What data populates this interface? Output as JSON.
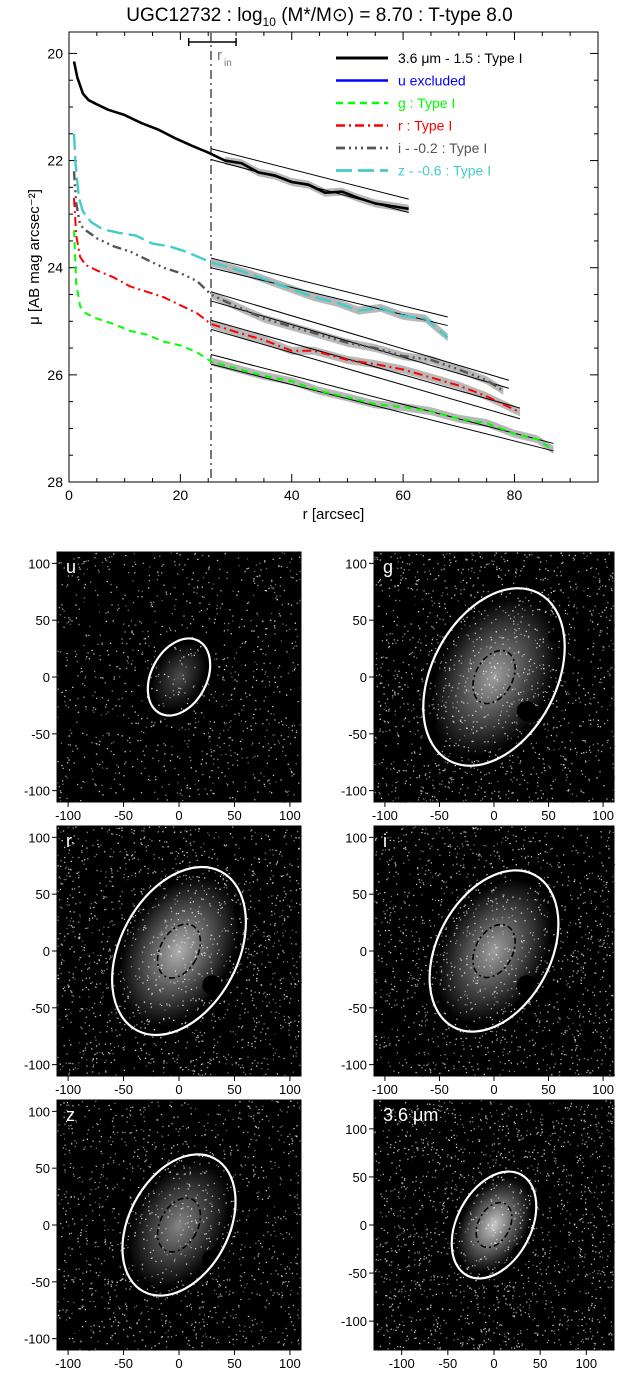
{
  "figure": {
    "title": {
      "galaxy": "UGC12732",
      "mass_prefix": "log",
      "mass_base": "10",
      "mass_expr": "(M*/M",
      "mass_sun": "⊙",
      "mass_value": ") = 8.70 : T-type 8.0"
    }
  },
  "chart_data": [
    {
      "type": "line",
      "name": "surface-brightness-profile",
      "xlabel": "r [arcsec]",
      "ylabel": "μ [AB mag arcsec⁻²]",
      "xlim": [
        0,
        95
      ],
      "ylim": [
        28,
        19.6
      ],
      "y_inverted": true,
      "xticks": [
        0,
        20,
        40,
        60,
        80
      ],
      "yticks": [
        20,
        22,
        24,
        26,
        28
      ],
      "grid": false,
      "legend_position": "top-right",
      "r_in": {
        "value": 25.5,
        "label": "r",
        "label_sub": "in",
        "err": [
          21.5,
          30
        ]
      },
      "series": [
        {
          "name": "3.6 μm - 1.5 : Type I",
          "color": "#000000",
          "dash": "",
          "width": 2.6,
          "x": [
            0.9,
            1.5,
            2.5,
            3.5,
            5,
            7,
            10,
            13,
            16,
            19,
            22,
            25,
            28,
            31,
            34,
            37,
            40,
            43,
            46,
            49,
            52,
            55,
            58,
            61
          ],
          "y": [
            20.15,
            20.45,
            20.75,
            20.87,
            20.95,
            21.05,
            21.15,
            21.3,
            21.42,
            21.58,
            21.72,
            21.85,
            22.0,
            22.05,
            22.22,
            22.28,
            22.4,
            22.45,
            22.6,
            22.58,
            22.7,
            22.8,
            22.85,
            22.9
          ],
          "fit": {
            "x": [
              25.5,
              61
            ],
            "y_upper": [
              21.78,
              22.72
            ],
            "y_lower": [
              21.98,
              22.97
            ]
          }
        },
        {
          "name": "u excluded",
          "color": "#0000ff",
          "dash": "",
          "width": 2,
          "x": [],
          "y": []
        },
        {
          "name": "g : Type I",
          "color": "#00ff00",
          "dash": "7,5",
          "width": 2,
          "x": [
            0.9,
            1.3,
            2,
            3,
            5,
            8,
            11,
            14,
            17,
            20,
            23,
            25.5,
            30,
            35,
            40,
            45,
            50,
            55,
            60,
            65,
            70,
            75,
            80,
            84,
            87
          ],
          "y": [
            23.3,
            24.3,
            24.72,
            24.85,
            24.95,
            25.05,
            25.18,
            25.25,
            25.38,
            25.45,
            25.58,
            25.75,
            25.88,
            26.02,
            26.12,
            26.3,
            26.42,
            26.55,
            26.6,
            26.68,
            26.82,
            26.9,
            27.1,
            27.2,
            27.4
          ],
          "fit": {
            "x": [
              25.5,
              87
            ],
            "y_upper": [
              25.62,
              27.28
            ],
            "y_lower": [
              25.8,
              27.42
            ]
          }
        },
        {
          "name": "r : Type I",
          "color": "#ff0000",
          "dash": "9,4,2,4",
          "width": 2,
          "x": [
            0.9,
            1.3,
            2,
            3,
            5,
            8,
            11,
            14,
            17,
            20,
            23,
            25.5,
            30,
            35,
            40,
            44,
            50,
            55,
            60,
            65,
            70,
            75,
            78,
            81
          ],
          "y": [
            22.7,
            23.4,
            23.8,
            23.95,
            24.05,
            24.18,
            24.35,
            24.45,
            24.55,
            24.7,
            24.85,
            25.05,
            25.2,
            25.35,
            25.55,
            25.55,
            25.72,
            25.8,
            25.9,
            26.05,
            26.2,
            26.4,
            26.55,
            26.7
          ],
          "fit": {
            "x": [
              25.5,
              81
            ],
            "y_upper": [
              24.98,
              26.62
            ],
            "y_lower": [
              25.15,
              26.82
            ]
          }
        },
        {
          "name": "i - -0.2 : Type I",
          "color": "#555555",
          "dash": "9,4,2,4,2,4,2,4",
          "width": 2.4,
          "x": [
            0.9,
            1.3,
            2,
            3,
            5,
            8,
            11,
            14,
            17,
            20,
            23,
            25.5,
            30,
            35,
            40,
            45,
            50,
            55,
            60,
            65,
            70,
            75,
            78
          ],
          "y": [
            22.2,
            22.8,
            23.2,
            23.3,
            23.45,
            23.6,
            23.7,
            23.85,
            24.0,
            24.1,
            24.25,
            24.5,
            24.72,
            24.95,
            25.1,
            25.25,
            25.4,
            25.5,
            25.65,
            25.72,
            25.9,
            26.1,
            26.3
          ],
          "fit": {
            "x": [
              25.5,
              79
            ],
            "y_upper": [
              24.45,
              26.1
            ],
            "y_lower": [
              24.62,
              26.25
            ]
          }
        },
        {
          "name": "z - -0.6 : Type I",
          "color": "#44cccc",
          "dash": "16,6",
          "width": 2.4,
          "x": [
            0.9,
            1.2,
            1.8,
            2.5,
            4,
            6,
            9,
            12,
            15,
            18,
            21,
            25.5,
            28,
            32,
            36,
            40,
            44,
            48,
            52,
            56,
            60,
            64,
            68
          ],
          "y": [
            21.5,
            22.1,
            22.7,
            22.95,
            23.15,
            23.28,
            23.35,
            23.4,
            23.55,
            23.6,
            23.7,
            23.9,
            23.97,
            24.1,
            24.25,
            24.4,
            24.55,
            24.65,
            24.8,
            24.75,
            24.9,
            24.95,
            25.3
          ],
          "fit": {
            "x": [
              25.5,
              68
            ],
            "y_upper": [
              23.82,
              24.92
            ],
            "y_lower": [
              24.0,
              25.08
            ]
          }
        }
      ]
    },
    {
      "type": "image",
      "panels": [
        {
          "label": "u",
          "xlim": [
            -110,
            110
          ],
          "ylim": [
            -110,
            110
          ],
          "xticks": [
            -100,
            -50,
            0,
            50,
            100
          ],
          "yticks": [
            100,
            50,
            0,
            -50,
            -100
          ],
          "outer_ellipse": {
            "a": 37,
            "b": 25,
            "tilt_deg": 62
          },
          "inner_ellipse": null,
          "brightness": 0.15
        },
        {
          "label": "g",
          "xlim": [
            -110,
            110
          ],
          "ylim": [
            -110,
            110
          ],
          "xticks": [
            -100,
            -50,
            0,
            50,
            100
          ],
          "yticks": [
            100,
            50,
            0,
            -50,
            -100
          ],
          "outer_ellipse": {
            "a": 87,
            "b": 57,
            "tilt_deg": 62
          },
          "inner_ellipse": {
            "a": 26,
            "b": 17
          },
          "brightness": 0.6
        },
        {
          "label": "r",
          "xlim": [
            -110,
            110
          ],
          "ylim": [
            -110,
            110
          ],
          "xticks": [
            -100,
            -50,
            0,
            50,
            100
          ],
          "yticks": [
            100,
            50,
            0,
            -50,
            -100
          ],
          "outer_ellipse": {
            "a": 81,
            "b": 53,
            "tilt_deg": 62
          },
          "inner_ellipse": {
            "a": 26,
            "b": 17
          },
          "brightness": 0.7
        },
        {
          "label": "i",
          "xlim": [
            -110,
            110
          ],
          "ylim": [
            -110,
            110
          ],
          "xticks": [
            -100,
            -50,
            0,
            50,
            100
          ],
          "yticks": [
            100,
            50,
            0,
            -50,
            -100
          ],
          "outer_ellipse": {
            "a": 79,
            "b": 52,
            "tilt_deg": 62
          },
          "inner_ellipse": {
            "a": 26,
            "b": 17
          },
          "brightness": 0.6
        },
        {
          "label": "z",
          "xlim": [
            -110,
            110
          ],
          "ylim": [
            -110,
            110
          ],
          "xticks": [
            -100,
            -50,
            0,
            50,
            100
          ],
          "yticks": [
            100,
            50,
            0,
            -50,
            -100
          ],
          "outer_ellipse": {
            "a": 68,
            "b": 45,
            "tilt_deg": 62
          },
          "inner_ellipse": {
            "a": 26,
            "b": 17
          },
          "brightness": 0.45
        },
        {
          "label": "3.6 μm",
          "xlim": [
            -130,
            130
          ],
          "ylim": [
            -130,
            130
          ],
          "xticks": [
            -100,
            -50,
            0,
            50,
            100
          ],
          "yticks": [
            100,
            50,
            0,
            -50,
            -100
          ],
          "outer_ellipse": {
            "a": 62,
            "b": 40,
            "tilt_deg": 62
          },
          "inner_ellipse": {
            "a": 26,
            "b": 17
          },
          "brightness": 0.85
        }
      ]
    }
  ]
}
